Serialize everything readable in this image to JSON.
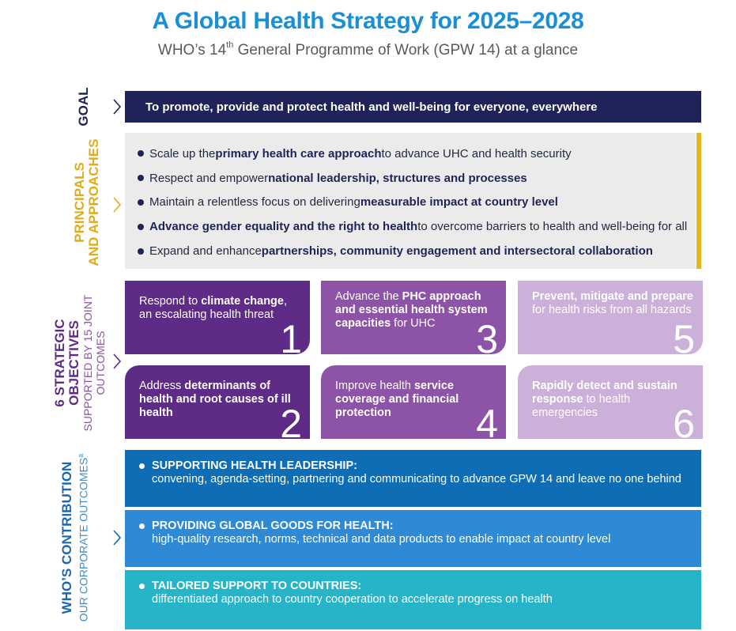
{
  "header": {
    "title": "A Global Health Strategy for 2025–2028",
    "subtitle_pre": "WHO’s 14",
    "subtitle_sup": "th",
    "subtitle_post": " General Programme of Work (GPW 14) at a glance"
  },
  "goal": {
    "label": "GOAL",
    "text": "To promote, provide and protect health and well-being for everyone, everywhere"
  },
  "principles": {
    "label_line1": "PRINCIPALS",
    "label_line2": "AND APPROACHES",
    "items": [
      {
        "pre": "Scale up the ",
        "bold": "primary health care approach",
        "post": " to advance UHC and health security"
      },
      {
        "pre": "Respect and empower ",
        "bold": "national leadership, structures and processes",
        "post": ""
      },
      {
        "pre": "Maintain a relentless focus on delivering ",
        "bold": "measurable impact at country level",
        "post": ""
      },
      {
        "pre": "",
        "bold": "Advance gender equality and the right to health",
        "post": " to overcome barriers to health and well-being for all"
      },
      {
        "pre": "Expand and enhance ",
        "bold": "partnerships, community engagement and intersectoral collaboration",
        "post": ""
      }
    ]
  },
  "objectives": {
    "label_line1": "6 STRATEGIC",
    "label_line2": "OBJECTIVES",
    "label_line3": "SUPPORTED BY 15 JOINT",
    "label_line4": "OUTCOMES",
    "items": [
      {
        "num": "1",
        "pre": "Respond to ",
        "bold": "climate change",
        "post": ", an escalating health threat"
      },
      {
        "num": "2",
        "pre": "Address ",
        "bold": "determinants of health and root causes of ill health",
        "post": ""
      },
      {
        "num": "3",
        "pre": "Advance the ",
        "bold": "PHC approach and essential health system capacities",
        "post": " for UHC"
      },
      {
        "num": "4",
        "pre": "Improve health ",
        "bold": "service coverage and financial protection",
        "post": ""
      },
      {
        "num": "5",
        "pre": "",
        "bold": "Prevent, mitigate and prepare",
        "post": " for health risks from all hazards"
      },
      {
        "num": "6",
        "pre": "",
        "bold": "Rapidly detect and sustain response",
        "post": " to health emergencies"
      }
    ]
  },
  "contribution": {
    "label_line1": "WHO’S CONTRIBUTION",
    "label_line2": "OUR CORPORATE OUTCOMES",
    "label_sup": "a",
    "items": [
      {
        "head": "SUPPORTING HEALTH LEADERSHIP:",
        "desc": "convening, agenda-setting, partnering and communicating to advance GPW 14 and leave no one behind"
      },
      {
        "head": "PROVIDING GLOBAL GOODS FOR HEALTH:",
        "desc": "high-quality research, norms, technical and data products to enable impact at country level"
      },
      {
        "head": "TAILORED SUPPORT TO COUNTRIES:",
        "desc": "differentiated approach to country cooperation to accelerate progress on health"
      }
    ]
  },
  "colors": {
    "title": "#1a8fd6",
    "navy": "#1f2458",
    "gold": "#e8b51a",
    "purple_dark": "#5e2b86",
    "purple_mid": "#8c53a6",
    "purple_light": "#cbb1d9",
    "blue_dark": "#0f6db5",
    "blue_mid": "#2f8ad5",
    "teal": "#27b4c9"
  }
}
